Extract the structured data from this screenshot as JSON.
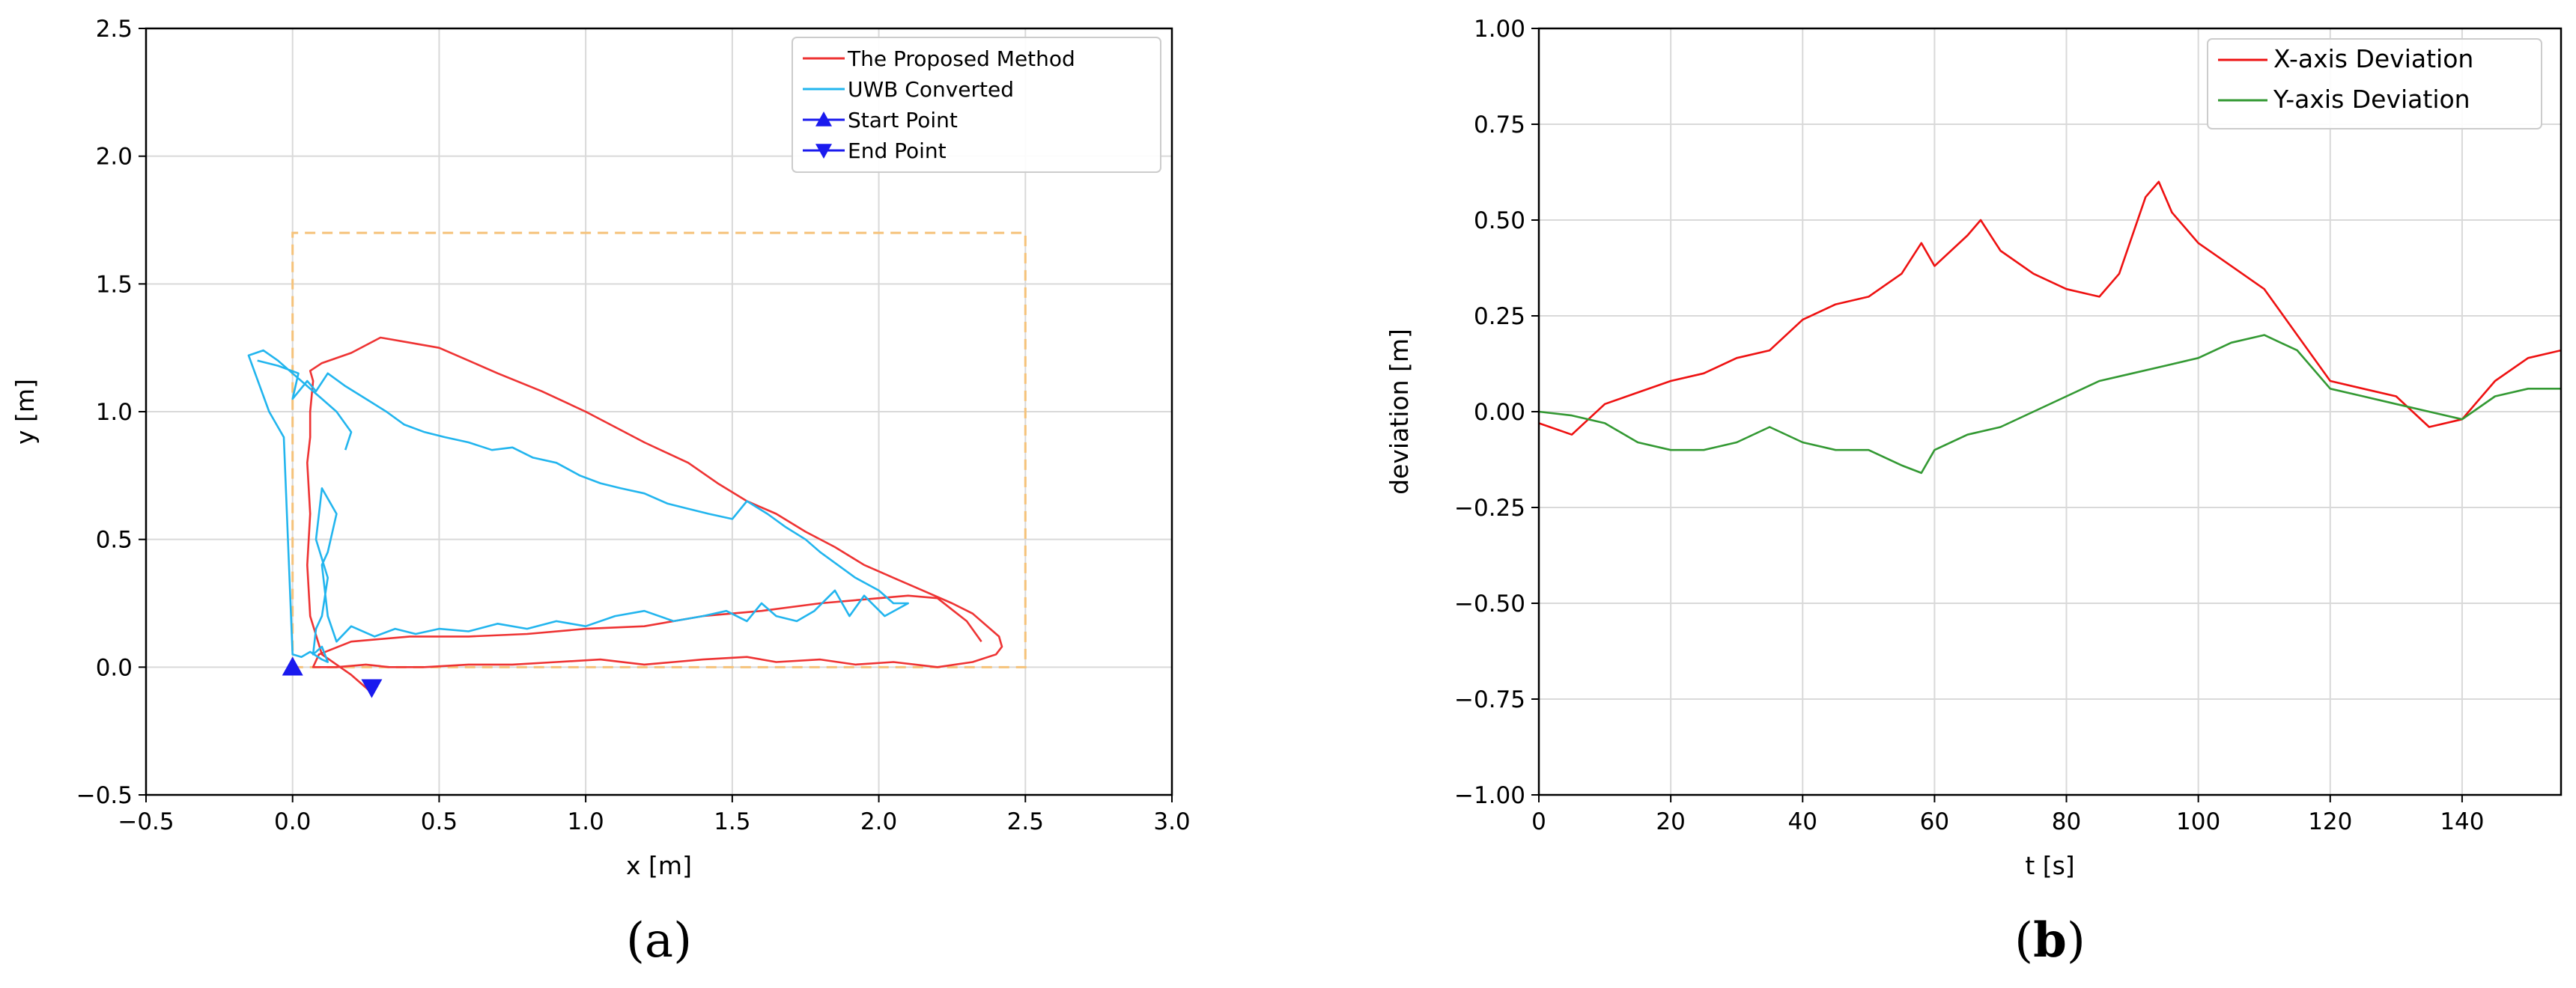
{
  "chart_data": [
    {
      "id": "a",
      "type": "line",
      "panel_label": "a",
      "xlabel": "x [m]",
      "ylabel": "y [m]",
      "xlim": [
        -0.5,
        3.0
      ],
      "ylim": [
        -0.5,
        2.5
      ],
      "xticks": [
        "−0.5",
        "0.0",
        "0.5",
        "1.0",
        "1.5",
        "2.0",
        "2.5",
        "3.0"
      ],
      "yticks": [
        "−0.5",
        "0.0",
        "0.5",
        "1.0",
        "1.5",
        "2.0",
        "2.5"
      ],
      "grid": true,
      "legend_position": "top-right",
      "boundary": {
        "x": [
          0.0,
          2.5,
          2.5,
          0.0,
          0.0
        ],
        "y": [
          0.0,
          0.0,
          1.7,
          1.7,
          0.0
        ],
        "color": "#f5c27a"
      },
      "series": [
        {
          "name": "The Proposed Method",
          "color": "#ee3333",
          "x": [
            0.27,
            0.2,
            0.1,
            0.06,
            0.05,
            0.06,
            0.05,
            0.06,
            0.06,
            0.07,
            0.06,
            0.1,
            0.2,
            0.3,
            0.4,
            0.5,
            0.6,
            0.7,
            0.85,
            1.0,
            1.1,
            1.2,
            1.35,
            1.45,
            1.55,
            1.65,
            1.75,
            1.85,
            1.95,
            2.05,
            2.15,
            2.25,
            2.32,
            2.38,
            2.41,
            2.42,
            2.4,
            2.32,
            2.2,
            2.05,
            1.92,
            1.8,
            1.65,
            1.55,
            1.4,
            1.3,
            1.2,
            1.05,
            0.9,
            0.75,
            0.6,
            0.45,
            0.33,
            0.25,
            0.15,
            0.1,
            0.07,
            0.09,
            0.2,
            0.4,
            0.6,
            0.8,
            1.0,
            1.2,
            1.4,
            1.6,
            1.8,
            2.0,
            2.1,
            2.2,
            2.3,
            2.35
          ],
          "y": [
            -0.1,
            -0.03,
            0.05,
            0.2,
            0.4,
            0.6,
            0.8,
            0.9,
            1.0,
            1.12,
            1.16,
            1.19,
            1.23,
            1.29,
            1.27,
            1.25,
            1.2,
            1.15,
            1.08,
            1.0,
            0.94,
            0.88,
            0.8,
            0.72,
            0.65,
            0.6,
            0.53,
            0.47,
            0.4,
            0.35,
            0.3,
            0.25,
            0.21,
            0.15,
            0.12,
            0.08,
            0.05,
            0.02,
            0.0,
            0.02,
            0.01,
            0.03,
            0.02,
            0.04,
            0.03,
            0.02,
            0.01,
            0.03,
            0.02,
            0.01,
            0.01,
            0.0,
            0.0,
            0.01,
            0.0,
            0.0,
            0.0,
            0.05,
            0.1,
            0.12,
            0.12,
            0.13,
            0.15,
            0.16,
            0.2,
            0.22,
            0.25,
            0.27,
            0.28,
            0.27,
            0.18,
            0.1
          ]
        },
        {
          "name": "UWB Converted",
          "color": "#22b5ee",
          "x": [
            -0.12,
            -0.05,
            0.02,
            0.0,
            0.05,
            0.08,
            0.12,
            0.18,
            0.25,
            0.32,
            0.38,
            0.45,
            0.52,
            0.6,
            0.68,
            0.75,
            0.82,
            0.9,
            0.98,
            1.05,
            1.12,
            1.2,
            1.28,
            1.35,
            1.42,
            1.5,
            1.55,
            1.62,
            1.68,
            1.75,
            1.8,
            1.86,
            1.92,
            2.0,
            2.05,
            2.1,
            2.02,
            1.95,
            1.9,
            1.85,
            1.78,
            1.72,
            1.65,
            1.6,
            1.55,
            1.48,
            1.4,
            1.3,
            1.2,
            1.1,
            1.0,
            0.9,
            0.8,
            0.7,
            0.6,
            0.5,
            0.42,
            0.35,
            0.28,
            0.2,
            0.15,
            0.12,
            0.1,
            0.12,
            0.15,
            0.1,
            0.08,
            0.12,
            0.1,
            0.08,
            0.07,
            0.1,
            0.12,
            0.1,
            0.06,
            0.03,
            0.0,
            -0.03,
            -0.08,
            -0.15,
            -0.1,
            -0.05,
            0.0,
            0.05,
            0.1,
            0.15,
            0.2,
            0.18
          ],
          "y": [
            1.2,
            1.18,
            1.15,
            1.05,
            1.12,
            1.08,
            1.15,
            1.1,
            1.05,
            1.0,
            0.95,
            0.92,
            0.9,
            0.88,
            0.85,
            0.86,
            0.82,
            0.8,
            0.75,
            0.72,
            0.7,
            0.68,
            0.64,
            0.62,
            0.6,
            0.58,
            0.65,
            0.6,
            0.55,
            0.5,
            0.45,
            0.4,
            0.35,
            0.3,
            0.25,
            0.25,
            0.2,
            0.28,
            0.2,
            0.3,
            0.22,
            0.18,
            0.2,
            0.25,
            0.18,
            0.22,
            0.2,
            0.18,
            0.22,
            0.2,
            0.16,
            0.18,
            0.15,
            0.17,
            0.14,
            0.15,
            0.13,
            0.15,
            0.12,
            0.16,
            0.1,
            0.2,
            0.4,
            0.45,
            0.6,
            0.7,
            0.5,
            0.35,
            0.2,
            0.15,
            0.05,
            0.08,
            0.02,
            0.03,
            0.06,
            0.04,
            0.05,
            0.9,
            1.0,
            1.22,
            1.24,
            1.2,
            1.15,
            1.1,
            1.05,
            1.0,
            0.92,
            0.85
          ]
        },
        {
          "name": "Start Point",
          "color": "#1a1aee",
          "marker": "triangle-up",
          "x": [
            0.0
          ],
          "y": [
            0.0
          ]
        },
        {
          "name": "End Point",
          "color": "#1a1aee",
          "marker": "triangle-down",
          "x": [
            0.27
          ],
          "y": [
            -0.08
          ]
        }
      ]
    },
    {
      "id": "b",
      "type": "line",
      "panel_label": "b",
      "xlabel": "t [s]",
      "ylabel": "deviation [m]",
      "xlim": [
        0,
        155
      ],
      "ylim": [
        -1.0,
        1.0
      ],
      "xticks": [
        "0",
        "20",
        "40",
        "60",
        "80",
        "100",
        "120",
        "140"
      ],
      "yticks": [
        "−1.00",
        "−0.75",
        "−0.50",
        "−0.25",
        "0.00",
        "0.25",
        "0.50",
        "0.75",
        "1.00"
      ],
      "grid": true,
      "legend_position": "top-right",
      "series": [
        {
          "name": "X-axis Deviation",
          "color": "#ee1111",
          "x": [
            0,
            5,
            10,
            15,
            20,
            25,
            30,
            35,
            40,
            45,
            50,
            55,
            58,
            60,
            65,
            67,
            70,
            75,
            80,
            85,
            88,
            92,
            94,
            96,
            100,
            105,
            110,
            115,
            120,
            125,
            130,
            135,
            140,
            145,
            150,
            155
          ],
          "y": [
            -0.03,
            -0.06,
            0.02,
            0.05,
            0.08,
            0.1,
            0.14,
            0.16,
            0.24,
            0.28,
            0.3,
            0.36,
            0.44,
            0.38,
            0.46,
            0.5,
            0.42,
            0.36,
            0.32,
            0.3,
            0.36,
            0.56,
            0.6,
            0.52,
            0.44,
            0.38,
            0.32,
            0.2,
            0.08,
            0.06,
            0.04,
            -0.04,
            -0.02,
            0.08,
            0.14,
            0.16
          ]
        },
        {
          "name": "Y-axis Deviation",
          "color": "#339933",
          "x": [
            0,
            5,
            10,
            15,
            20,
            25,
            30,
            35,
            40,
            45,
            50,
            55,
            58,
            60,
            65,
            70,
            75,
            80,
            85,
            90,
            95,
            100,
            105,
            110,
            115,
            120,
            125,
            130,
            135,
            140,
            145,
            150,
            155
          ],
          "y": [
            0.0,
            -0.01,
            -0.03,
            -0.08,
            -0.1,
            -0.1,
            -0.08,
            -0.04,
            -0.08,
            -0.1,
            -0.1,
            -0.14,
            -0.16,
            -0.1,
            -0.06,
            -0.04,
            0.0,
            0.04,
            0.08,
            0.1,
            0.12,
            0.14,
            0.18,
            0.2,
            0.16,
            0.06,
            0.04,
            0.02,
            0.0,
            -0.02,
            0.04,
            0.06,
            0.06
          ]
        }
      ]
    }
  ]
}
